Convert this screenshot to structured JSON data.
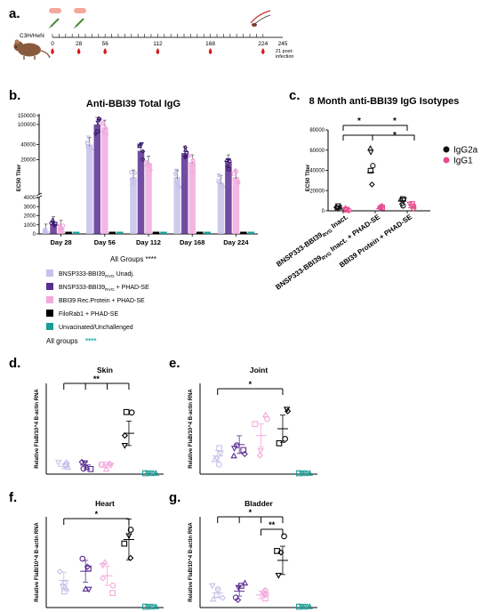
{
  "panels": {
    "a": "a.",
    "b": "b.",
    "c": "c.",
    "d": "d.",
    "e": "e.",
    "f": "f.",
    "g": "g."
  },
  "timeline": {
    "strain": "C3H/HeN",
    "days": [
      "0",
      "28",
      "56",
      "112",
      "168",
      "224",
      "245"
    ],
    "endnote_1": "21 post-",
    "endnote_2": "infection"
  },
  "colors": {
    "bnsp_unadj": "#c6c1ea",
    "bnsp_phad": "#5a2d91",
    "bbi39_rec": "#f2a9dd",
    "filorab1": "#000000",
    "unvacc": "#1b9e98",
    "igg2a": "#111111",
    "igg1": "#e64c8f",
    "asterisk_teal": "#27b3a9"
  },
  "legend_b": {
    "items": [
      {
        "key": "bnsp_unadj",
        "base": "BNSP333-BBI39",
        "sub": "RVG",
        "rest": " Unadj."
      },
      {
        "key": "bnsp_phad",
        "base": "BNSP333-BBI39",
        "sub": "RVG",
        "rest": " + PHAD-SE"
      },
      {
        "key": "bbi39_rec",
        "base": "BBI39 Rec.Protein + PHAD-SE",
        "sub": "",
        "rest": ""
      },
      {
        "key": "filorab1",
        "base": "FiloRab1 + PHAD-SE",
        "sub": "",
        "rest": ""
      },
      {
        "key": "unvacc",
        "base": "Unvacinated/Unchallenged",
        "sub": "",
        "rest": ""
      }
    ],
    "all_groups_label": "All groups",
    "all_groups_stars": "****"
  },
  "chart_data": [
    {
      "id": "b",
      "type": "bar",
      "title": "Anti-BBI39 Total IgG",
      "ylabel": "EC50 Titer",
      "categories": [
        "Day 28",
        "Day 56",
        "Day 112",
        "Day 168",
        "Day 224"
      ],
      "yticks": [
        "0",
        "1000",
        "2000",
        "3000",
        "4000",
        "20000",
        "40000",
        "100000",
        "150000"
      ],
      "series": [
        {
          "key": "bnsp_unadj",
          "values": [
            300,
            40000,
            9000,
            9000,
            7000
          ]
        },
        {
          "key": "bnsp_phad",
          "values": [
            1100,
            100000,
            30000,
            27000,
            18000
          ]
        },
        {
          "key": "bbi39_rec",
          "values": [
            700,
            88000,
            17000,
            18000,
            9000
          ]
        },
        {
          "key": "filorab1",
          "values": [
            0,
            0,
            0,
            0,
            0
          ]
        },
        {
          "key": "unvacc",
          "values": [
            0,
            0,
            0,
            0,
            0
          ]
        }
      ],
      "annotation": "All Groups ****"
    },
    {
      "id": "c",
      "type": "scatter",
      "title": "8 Month anti-BBI39 IgG Isotypes",
      "ylabel": "EC50 Titer",
      "ylim": [
        0,
        80000
      ],
      "yticks": [
        "0",
        "20000",
        "40000",
        "60000",
        "80000"
      ],
      "categories": [
        {
          "base": "BNSP333-BBI39",
          "sub": "RVG",
          "rest": " Inact."
        },
        {
          "base": "BNSP333-BBI39",
          "sub": "RVG",
          "rest": " Inact. + PHAD-SE"
        },
        {
          "base": "BBI39 Protein + PHAD-SE",
          "sub": "",
          "rest": ""
        }
      ],
      "series": [
        {
          "name": "IgG2a",
          "means": [
            5000,
            38000,
            10000
          ]
        },
        {
          "name": "IgG1",
          "means": [
            0,
            2000,
            3000
          ]
        }
      ],
      "significance": [
        "*",
        "*",
        "*"
      ]
    },
    {
      "id": "d",
      "type": "scatter",
      "title": "Skin",
      "ylabel": "Relative FlaB/10^4 B-actin RNA",
      "ylim": [
        0,
        300
      ],
      "means": [
        25,
        30,
        30,
        135,
        2
      ],
      "significance": [
        "**"
      ]
    },
    {
      "id": "e",
      "type": "scatter",
      "title": "Joint",
      "ylabel": "Relative FlaB/10^4 B-actin RNA",
      "ylim": [
        0,
        40
      ],
      "means": [
        8,
        13,
        17,
        20,
        0.5
      ],
      "significance": [
        "*"
      ]
    },
    {
      "id": "f",
      "type": "scatter",
      "title": "Heart",
      "ylabel": "Relative FlaB/10^4 B-actin RNA",
      "ylim": [
        0,
        20
      ],
      "means": [
        6,
        8,
        7,
        15,
        0
      ],
      "significance": [
        "*"
      ]
    },
    {
      "id": "g",
      "type": "scatter",
      "title": "Bladder",
      "ylabel": "Relative FlaB/10^4 B-actin RNA",
      "ylim": [
        0,
        25
      ],
      "means": [
        4,
        4.5,
        3.5,
        13,
        0
      ],
      "significance": [
        "*",
        "**"
      ]
    }
  ]
}
